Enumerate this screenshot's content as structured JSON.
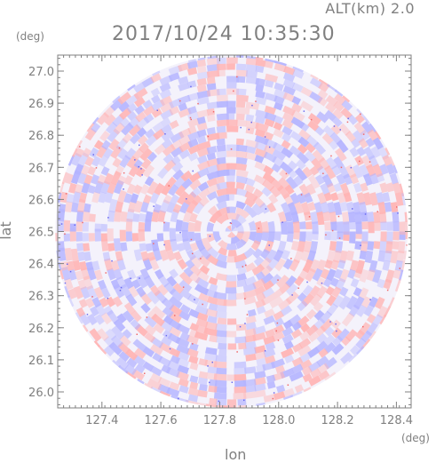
{
  "header": {
    "altitude_label": "ALT(km) 2.0",
    "timestamp": "2017/10/24 10:35:30"
  },
  "chart_data": {
    "type": "heatmap",
    "title": "2017/10/24 10:35:30",
    "xlabel": "lon",
    "ylabel": "lat",
    "x_unit": "(deg)",
    "y_unit": "(deg)",
    "xlim": [
      127.25,
      128.45
    ],
    "ylim": [
      25.95,
      27.05
    ],
    "x_ticks": [
      "127.4",
      "127.6",
      "127.8",
      "128.0",
      "128.2",
      "128.4"
    ],
    "y_ticks": [
      "26.0",
      "26.1",
      "26.2",
      "26.3",
      "26.4",
      "26.5",
      "26.6",
      "26.7",
      "26.8",
      "26.9",
      "27.0"
    ],
    "center": [
      127.84,
      26.5
    ],
    "radius_lat_deg": 0.55,
    "colors": {
      "positive": "#ffb4b4",
      "negative": "#b4b4ff",
      "axis": "#808080"
    },
    "grid": false
  }
}
